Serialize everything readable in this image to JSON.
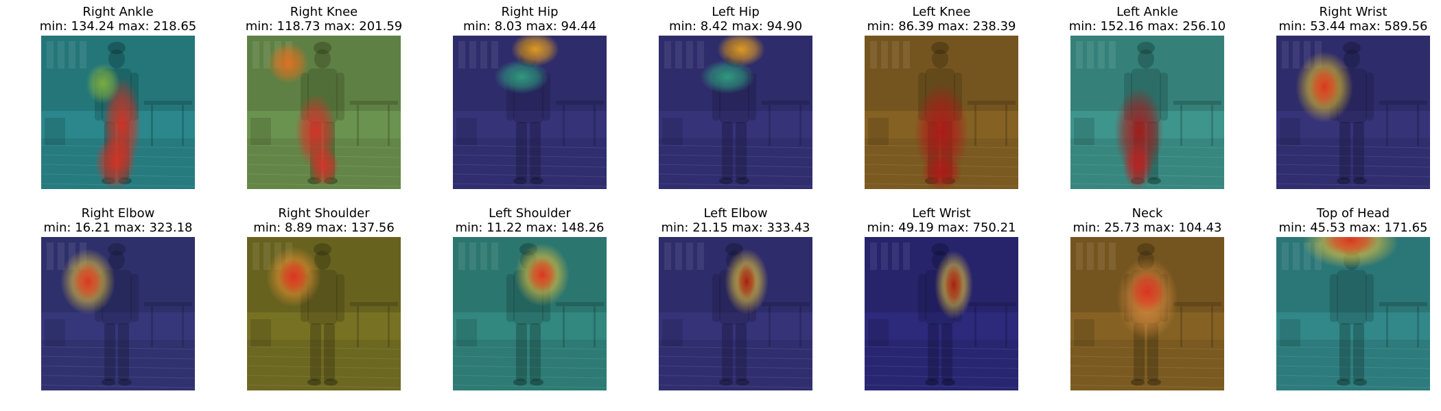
{
  "chart_data": [
    {
      "type": "heatmap",
      "title": "Right Ankle",
      "min_label": "min:",
      "min": "134.24",
      "max_label": "max:",
      "max": "218.65",
      "overlay": "blue-green-yellow-red",
      "hotspot": "lower legs"
    },
    {
      "type": "heatmap",
      "title": "Right Knee",
      "min_label": "min:",
      "min": "118.73",
      "max_label": "max:",
      "max": "201.59",
      "overlay": "blue-green-yellow-red",
      "hotspot": "knees"
    },
    {
      "type": "heatmap",
      "title": "Right Hip",
      "min_label": "min:",
      "min": "8.03",
      "max_label": "max:",
      "max": "94.44",
      "overlay": "blue-green-yellow-red",
      "hotspot": "head"
    },
    {
      "type": "heatmap",
      "title": "Left Hip",
      "min_label": "min:",
      "min": "8.42",
      "max_label": "max:",
      "max": "94.90",
      "overlay": "blue-green-yellow-red",
      "hotspot": "head"
    },
    {
      "type": "heatmap",
      "title": "Left Knee",
      "min_label": "min:",
      "min": "86.39",
      "max_label": "max:",
      "max": "238.39",
      "overlay": "blue-green-yellow-red",
      "hotspot": "legs"
    },
    {
      "type": "heatmap",
      "title": "Left Ankle",
      "min_label": "min:",
      "min": "152.16",
      "max_label": "max:",
      "max": "256.10",
      "overlay": "blue-green-yellow-red",
      "hotspot": "legs"
    },
    {
      "type": "heatmap",
      "title": "Right Wrist",
      "min_label": "min:",
      "min": "53.44",
      "max_label": "max:",
      "max": "589.56",
      "overlay": "blue-green-yellow-red",
      "hotspot": "right wrist"
    },
    {
      "type": "heatmap",
      "title": "Right Elbow",
      "min_label": "min:",
      "min": "16.21",
      "max_label": "max:",
      "max": "323.18",
      "overlay": "blue-green-yellow-red",
      "hotspot": "right elbow"
    },
    {
      "type": "heatmap",
      "title": "Right Shoulder",
      "min_label": "min:",
      "min": "8.89",
      "max_label": "max:",
      "max": "137.56",
      "overlay": "blue-green-yellow-red",
      "hotspot": "right shoulder"
    },
    {
      "type": "heatmap",
      "title": "Left Shoulder",
      "min_label": "min:",
      "min": "11.22",
      "max_label": "max:",
      "max": "148.26",
      "overlay": "blue-green-yellow-red",
      "hotspot": "left shoulder"
    },
    {
      "type": "heatmap",
      "title": "Left Elbow",
      "min_label": "min:",
      "min": "21.15",
      "max_label": "max:",
      "max": "333.43",
      "overlay": "blue-green-yellow-red",
      "hotspot": "left elbow"
    },
    {
      "type": "heatmap",
      "title": "Left Wrist",
      "min_label": "min:",
      "min": "49.19",
      "max_label": "max:",
      "max": "750.21",
      "overlay": "blue-green-yellow-red",
      "hotspot": "left wrist"
    },
    {
      "type": "heatmap",
      "title": "Neck",
      "min_label": "min:",
      "min": "25.73",
      "max_label": "max:",
      "max": "104.43",
      "overlay": "blue-green-yellow-red",
      "hotspot": "neck"
    },
    {
      "type": "heatmap",
      "title": "Top of Head",
      "min_label": "min:",
      "min": "45.53",
      "max_label": "max:",
      "max": "171.65",
      "overlay": "blue-green-yellow-red",
      "hotspot": "head top"
    }
  ]
}
